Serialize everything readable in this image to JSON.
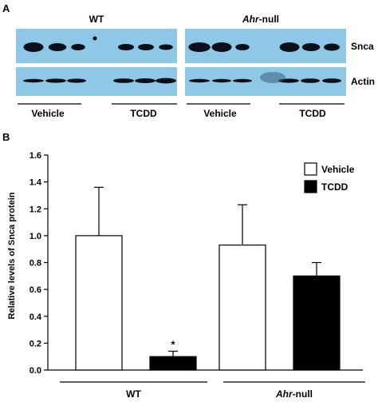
{
  "panel_a": {
    "letter": "A",
    "group_wt": "WT",
    "group_ahr_italic": "Ahr",
    "group_ahr_rest": "-null",
    "row_labels": [
      "Snca",
      "Actin"
    ],
    "treatments": [
      "Vehicle",
      "TCDD",
      "Vehicle",
      "TCDD"
    ]
  },
  "panel_b": {
    "letter": "B"
  },
  "chart_data": {
    "type": "bar",
    "categories": [
      "WT",
      "Ahr-null"
    ],
    "category_labels": [
      {
        "italic": "",
        "rest": "WT"
      },
      {
        "italic": "Ahr",
        "rest": "-null"
      }
    ],
    "series": [
      {
        "name": "Vehicle",
        "values": [
          1.0,
          0.93
        ],
        "errors": [
          0.36,
          0.3
        ],
        "color": "#ffffff"
      },
      {
        "name": "TCDD",
        "values": [
          0.1,
          0.7
        ],
        "errors": [
          0.04,
          0.1
        ],
        "color": "#000000"
      }
    ],
    "ylabel": "Relative levels of Snca protein",
    "ylim": [
      0,
      1.6
    ],
    "yticks": [
      "0.0",
      "0.2",
      "0.4",
      "0.6",
      "0.8",
      "1.0",
      "1.2",
      "1.4",
      "1.6"
    ],
    "significance": [
      {
        "category": 0,
        "series": 1,
        "mark": "*"
      }
    ],
    "legend_position": "top-right",
    "grid": false
  },
  "colors": {
    "blot_background": "#8fc7e6",
    "band": "#0a0f1a"
  }
}
